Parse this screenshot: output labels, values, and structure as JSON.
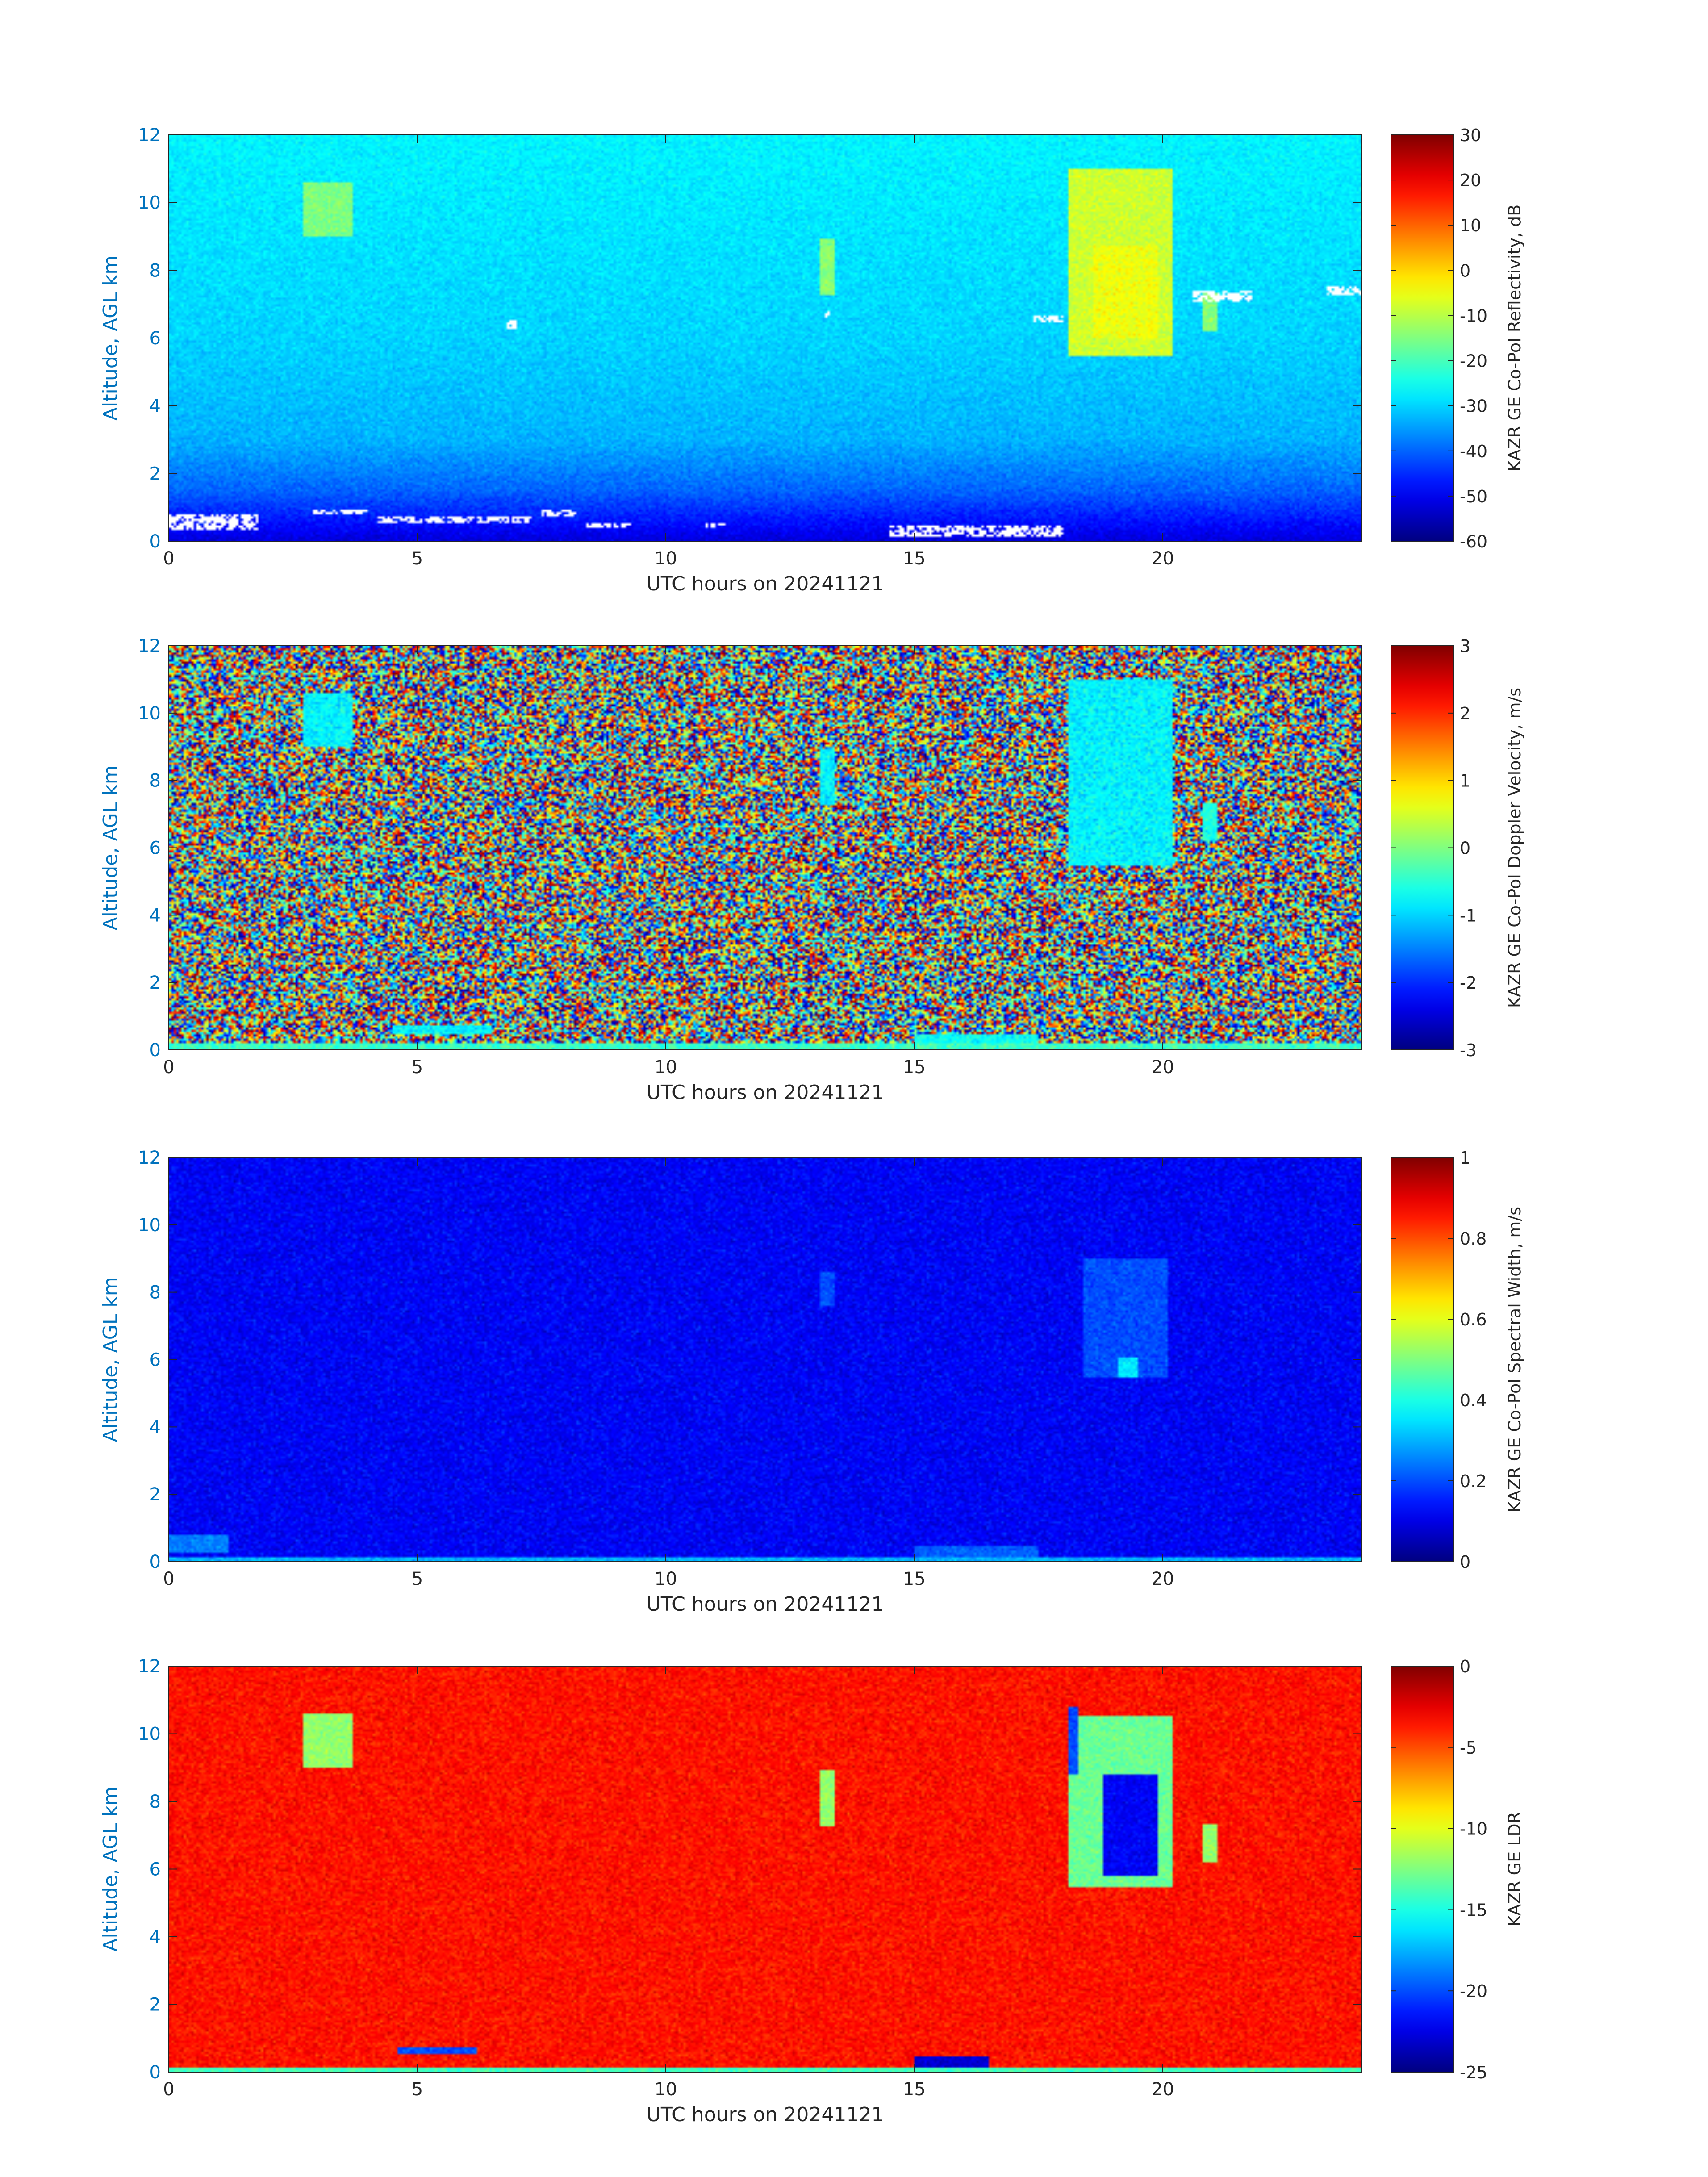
{
  "figure": {
    "xlabel": "UTC hours on 20241121",
    "ylabel": "Altitude, AGL km",
    "axis_color": "#0072bd"
  },
  "chart_data": [
    {
      "type": "heatmap",
      "colormap": "jet",
      "xlabel": "UTC hours on 20241121",
      "ylabel": "Altitude, AGL km",
      "xlim": [
        0,
        24
      ],
      "ylim": [
        0,
        12
      ],
      "xticks": [
        "0",
        "5",
        "10",
        "15",
        "20"
      ],
      "yticks": [
        "0",
        "2",
        "4",
        "6",
        "8",
        "10",
        "12"
      ],
      "colorbar": {
        "label": "KAZR GE Co-Pol Reflectivity, dB",
        "range": [
          -60,
          30
        ],
        "ticks": [
          "30",
          "20",
          "10",
          "0",
          "-10",
          "-20",
          "-30",
          "-40",
          "-50",
          "-60"
        ]
      },
      "background_gradient": [
        {
          "alt": 0,
          "value": -52
        },
        {
          "alt": 0.5,
          "value": -48
        },
        {
          "alt": 1.5,
          "value": -40
        },
        {
          "alt": 3,
          "value": -33
        },
        {
          "alt": 6,
          "value": -30
        },
        {
          "alt": 12,
          "value": -27
        }
      ],
      "features": [
        {
          "x0": 18.1,
          "x1": 20.2,
          "y0": 5.5,
          "y1": 11.0,
          "value": -8
        },
        {
          "x0": 18.6,
          "x1": 19.9,
          "y0": 6.0,
          "y1": 8.7,
          "value": -5
        },
        {
          "x0": 2.7,
          "x1": 3.7,
          "y0": 9.0,
          "y1": 10.6,
          "value": -15
        },
        {
          "x0": 13.1,
          "x1": 13.4,
          "y0": 7.3,
          "y1": 8.9,
          "value": -14
        },
        {
          "x0": 20.8,
          "x1": 21.1,
          "y0": 6.2,
          "y1": 7.3,
          "value": -14
        }
      ],
      "white_gaps": [
        {
          "x0": 0,
          "x1": 1.8,
          "y0": 0.35,
          "y1": 0.8
        },
        {
          "x0": 2.9,
          "x1": 4.0,
          "y0": 0.8,
          "y1": 0.95
        },
        {
          "x0": 4.2,
          "x1": 7.3,
          "y0": 0.55,
          "y1": 0.75
        },
        {
          "x0": 7.5,
          "x1": 8.2,
          "y0": 0.75,
          "y1": 0.9
        },
        {
          "x0": 8.4,
          "x1": 9.3,
          "y0": 0.4,
          "y1": 0.55
        },
        {
          "x0": 10.8,
          "x1": 11.2,
          "y0": 0.4,
          "y1": 0.55
        },
        {
          "x0": 14.5,
          "x1": 18.0,
          "y0": 0.1,
          "y1": 0.45
        },
        {
          "x0": 6.8,
          "x1": 7.0,
          "y0": 6.3,
          "y1": 6.5
        },
        {
          "x0": 13.2,
          "x1": 13.3,
          "y0": 6.6,
          "y1": 6.8
        },
        {
          "x0": 17.4,
          "x1": 18.0,
          "y0": 6.5,
          "y1": 6.65
        },
        {
          "x0": 20.6,
          "x1": 21.8,
          "y0": 7.1,
          "y1": 7.4
        },
        {
          "x0": 23.3,
          "x1": 24.0,
          "y0": 7.3,
          "y1": 7.5
        }
      ]
    },
    {
      "type": "heatmap",
      "colormap": "jet",
      "xlabel": "UTC hours on 20241121",
      "ylabel": "Altitude, AGL km",
      "xlim": [
        0,
        24
      ],
      "ylim": [
        0,
        12
      ],
      "xticks": [
        "0",
        "5",
        "10",
        "15",
        "20"
      ],
      "yticks": [
        "0",
        "2",
        "4",
        "6",
        "8",
        "10",
        "12"
      ],
      "colorbar": {
        "label": "KAZR GE Co-Pol Doppler Velocity, m/s",
        "range": [
          -3,
          3
        ],
        "ticks": [
          "3",
          "2",
          "1",
          "0",
          "-1",
          "-2",
          "-3"
        ]
      },
      "background_noise": "random",
      "features": [
        {
          "x0": 18.1,
          "x1": 20.2,
          "y0": 5.5,
          "y1": 11.0,
          "value": -0.8
        },
        {
          "x0": 2.7,
          "x1": 3.7,
          "y0": 9.0,
          "y1": 10.6,
          "value": -0.8
        },
        {
          "x0": 13.1,
          "x1": 13.4,
          "y0": 7.3,
          "y1": 8.9,
          "value": -0.8
        },
        {
          "x0": 20.8,
          "x1": 21.1,
          "y0": 6.2,
          "y1": 7.3,
          "value": -0.6
        },
        {
          "x0": 4.5,
          "x1": 6.5,
          "y0": 0.45,
          "y1": 0.7,
          "value": -0.8
        },
        {
          "x0": 15.0,
          "x1": 17.5,
          "y0": 0.1,
          "y1": 0.45,
          "value": -0.7
        },
        {
          "x0": 0,
          "x1": 24,
          "y0": 0.0,
          "y1": 0.18,
          "value": -0.4
        }
      ]
    },
    {
      "type": "heatmap",
      "colormap": "jet",
      "xlabel": "UTC hours on 20241121",
      "ylabel": "Altitude, AGL km",
      "xlim": [
        0,
        24
      ],
      "ylim": [
        0,
        12
      ],
      "xticks": [
        "0",
        "5",
        "10",
        "15",
        "20"
      ],
      "yticks": [
        "0",
        "2",
        "4",
        "6",
        "8",
        "10",
        "12"
      ],
      "colorbar": {
        "label": "KAZR GE Co-Pol Spectral Width, m/s",
        "range": [
          0,
          1
        ],
        "ticks": [
          "1",
          "0.8",
          "0.6",
          "0.4",
          "0.2",
          "0"
        ]
      },
      "background_value": 0.12,
      "features": [
        {
          "x0": 18.4,
          "x1": 20.1,
          "y0": 5.5,
          "y1": 9.0,
          "value": 0.2
        },
        {
          "x0": 19.1,
          "x1": 19.5,
          "y0": 5.5,
          "y1": 6.1,
          "value": 0.35
        },
        {
          "x0": 13.1,
          "x1": 13.4,
          "y0": 7.6,
          "y1": 8.6,
          "value": 0.2
        },
        {
          "x0": 0,
          "x1": 1.2,
          "y0": 0.3,
          "y1": 0.8,
          "value": 0.25
        },
        {
          "x0": 15.0,
          "x1": 17.5,
          "y0": 0.15,
          "y1": 0.45,
          "value": 0.22
        },
        {
          "x0": 0,
          "x1": 24,
          "y0": 0.0,
          "y1": 0.15,
          "value": 0.3
        }
      ]
    },
    {
      "type": "heatmap",
      "colormap": "jet",
      "xlabel": "UTC hours on 20241121",
      "ylabel": "Altitude, AGL km",
      "xlim": [
        0,
        24
      ],
      "ylim": [
        0,
        12
      ],
      "xticks": [
        "0",
        "5",
        "10",
        "15",
        "20"
      ],
      "yticks": [
        "0",
        "2",
        "4",
        "6",
        "8",
        "10",
        "12"
      ],
      "colorbar": {
        "label": "KAZR GE LDR",
        "range": [
          -25,
          0
        ],
        "ticks": [
          "0",
          "-5",
          "-10",
          "-15",
          "-20",
          "-25"
        ]
      },
      "background_value": -3.5,
      "features": [
        {
          "x0": 18.1,
          "x1": 20.2,
          "y0": 5.5,
          "y1": 10.5,
          "value": -13
        },
        {
          "x0": 18.8,
          "x1": 19.9,
          "y0": 5.8,
          "y1": 8.8,
          "value": -22
        },
        {
          "x0": 18.1,
          "x1": 18.3,
          "y0": 8.8,
          "y1": 10.8,
          "value": -20
        },
        {
          "x0": 2.7,
          "x1": 3.7,
          "y0": 9.0,
          "y1": 10.6,
          "value": -12
        },
        {
          "x0": 13.1,
          "x1": 13.4,
          "y0": 7.3,
          "y1": 8.9,
          "value": -12
        },
        {
          "x0": 20.8,
          "x1": 21.1,
          "y0": 6.2,
          "y1": 7.3,
          "value": -12
        },
        {
          "x0": 4.6,
          "x1": 6.2,
          "y0": 0.55,
          "y1": 0.7,
          "value": -20
        },
        {
          "x0": 15.0,
          "x1": 16.5,
          "y0": 0.1,
          "y1": 0.45,
          "value": -23
        },
        {
          "x0": 0,
          "x1": 24,
          "y0": 0.0,
          "y1": 0.15,
          "value": -14
        }
      ]
    }
  ]
}
